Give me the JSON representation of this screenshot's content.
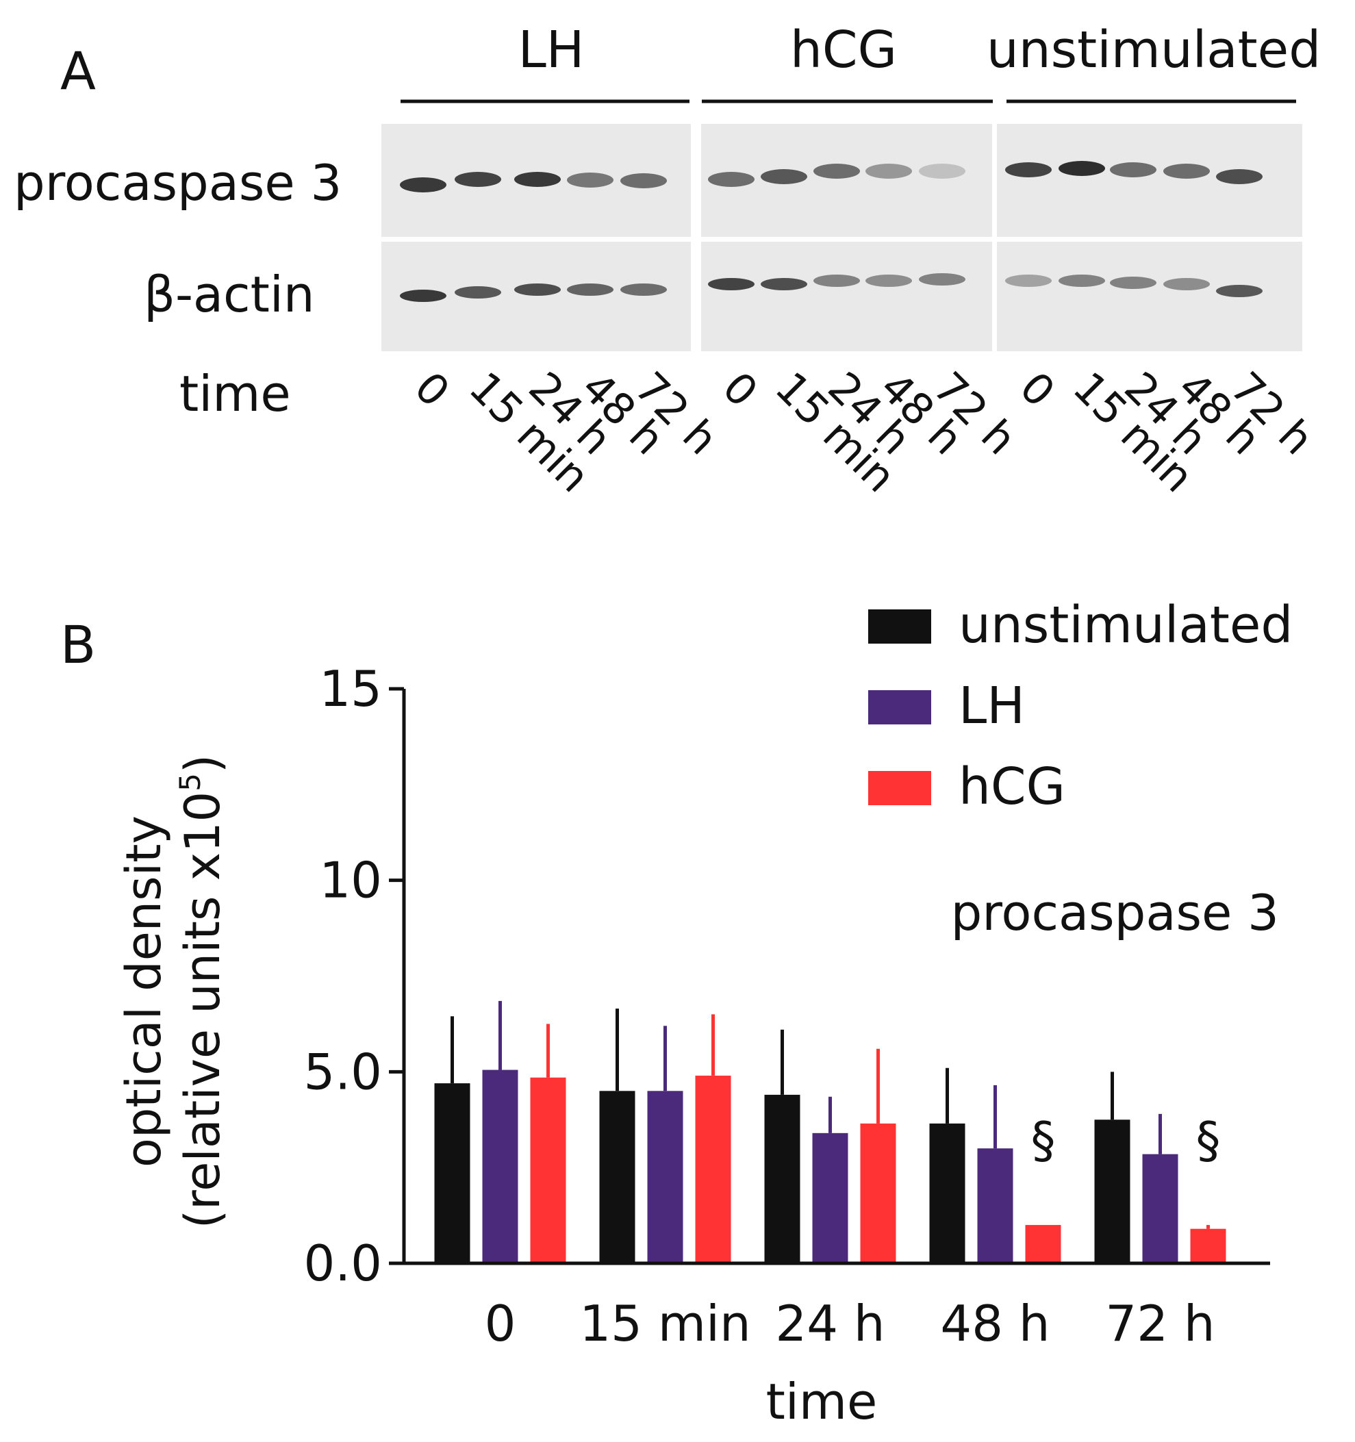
{
  "panel_a": {
    "panel_label": "A",
    "groups": [
      {
        "label": "LH",
        "lane_labels": [
          "0",
          "15 min",
          "24 h",
          "48 h",
          "72 h"
        ]
      },
      {
        "label": "hCG",
        "lane_labels": [
          "0",
          "15 min",
          "24 h",
          "48 h",
          "72 h"
        ]
      },
      {
        "label": "unstimulated",
        "lane_labels": [
          "0",
          "15 min",
          "24 h",
          "48 h",
          "72 h"
        ]
      }
    ],
    "row_labels": {
      "procaspase": "procaspase 3",
      "actin": "β-actin",
      "time": "time"
    },
    "band_intensity": {
      "procaspase": [
        0.85,
        0.8,
        0.85,
        0.55,
        0.6,
        0.6,
        0.7,
        0.6,
        0.4,
        0.2,
        0.8,
        0.9,
        0.6,
        0.6,
        0.75
      ],
      "actin": [
        0.85,
        0.7,
        0.75,
        0.65,
        0.6,
        0.8,
        0.75,
        0.5,
        0.45,
        0.5,
        0.35,
        0.5,
        0.5,
        0.45,
        0.7
      ]
    }
  },
  "panel_b": {
    "panel_label": "B",
    "annotation": "procaspase 3",
    "significance_marker": "§"
  },
  "chart_data": {
    "type": "bar",
    "categories": [
      "0",
      "15 min",
      "24 h",
      "48 h",
      "72 h"
    ],
    "series": [
      {
        "name": "unstimulated",
        "color": "#111111",
        "values": [
          4.7,
          4.5,
          4.4,
          3.65,
          3.75
        ],
        "errors": [
          1.75,
          2.15,
          1.7,
          1.45,
          1.25
        ]
      },
      {
        "name": "LH",
        "color": "#4b2a7b",
        "values": [
          5.05,
          4.5,
          3.4,
          3.0,
          2.85
        ],
        "errors": [
          1.8,
          1.7,
          0.95,
          1.65,
          1.05
        ]
      },
      {
        "name": "hCG",
        "color": "#ff3333",
        "values": [
          4.85,
          4.9,
          3.65,
          1.0,
          0.9
        ],
        "errors": [
          1.4,
          1.6,
          1.95,
          0.0,
          0.1
        ]
      }
    ],
    "xlabel": "time",
    "ylabel_line1": "optical density",
    "ylabel_line2": "(relative units x10",
    "ylabel_sup": "5",
    "ylabel_close": ")",
    "ylim": [
      0,
      15
    ],
    "yticks": [
      "0.0",
      "5.0",
      "10",
      "15"
    ],
    "yticks_values": [
      0,
      5,
      10,
      15
    ],
    "legend_position": "top-right",
    "marked_categories": [
      3,
      4
    ]
  }
}
